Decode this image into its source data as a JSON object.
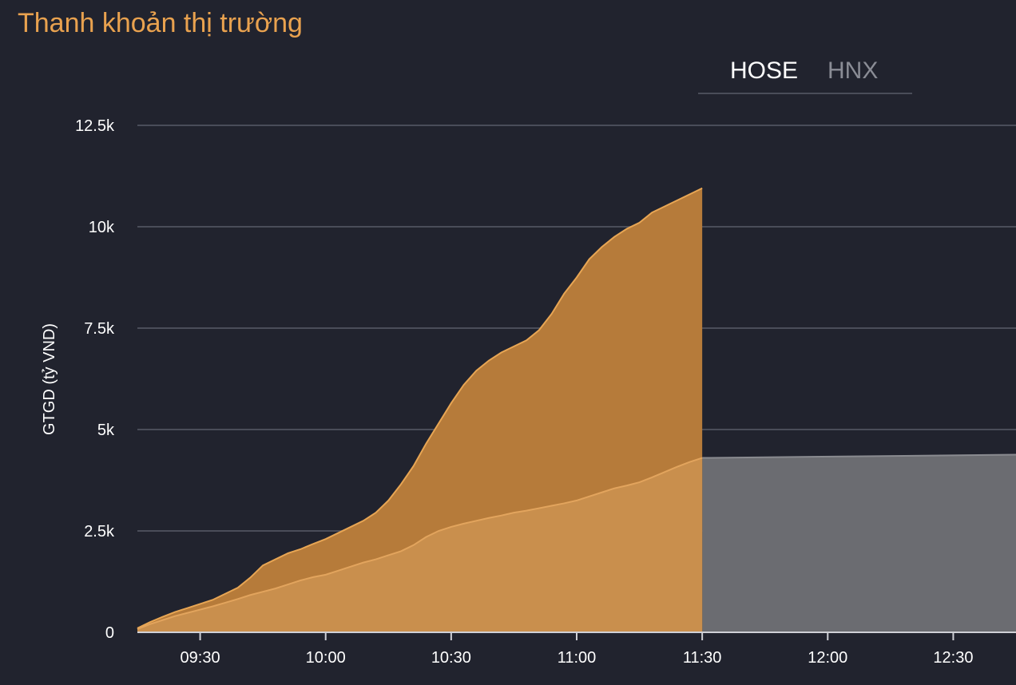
{
  "title": "Thanh khoản thị trường",
  "tabs": [
    {
      "label": "HOSE",
      "active": true
    },
    {
      "label": "HNX",
      "active": false
    }
  ],
  "colors": {
    "background": "#21232e",
    "title": "#e9a24f",
    "current_session_fill": "#b67b3a",
    "current_session_line": "#e8a654",
    "previous_session_fill": "#c98f4d",
    "previous_session_line": "#e2a45d",
    "projection_fill": "#6b6c71",
    "grid": "#4a4d59",
    "text": "#ffffff"
  },
  "chart_data": {
    "type": "area",
    "ylabel": "GTGD (tỷ VND)",
    "xlabel": "",
    "ylim": [
      0,
      12500
    ],
    "yticks": [
      0,
      2500,
      5000,
      7500,
      10000,
      12500
    ],
    "ytick_labels": [
      "0",
      "2.5k",
      "5k",
      "7.5k",
      "10k",
      "12.5k"
    ],
    "x_range": [
      "09:15",
      "12:45"
    ],
    "xticks": [
      "09:30",
      "10:00",
      "10:30",
      "11:00",
      "11:30",
      "12:00",
      "12:30"
    ],
    "grid": true,
    "series": [
      {
        "name": "",
        "x": [
          "09:15",
          "09:18",
          "09:21",
          "09:24",
          "09:27",
          "09:30",
          "09:33",
          "09:36",
          "09:39",
          "09:42",
          "09:45",
          "09:48",
          "09:51",
          "09:54",
          "09:57",
          "10:00",
          "10:03",
          "10:06",
          "10:09",
          "10:12",
          "10:15",
          "10:18",
          "10:21",
          "10:24",
          "10:27",
          "10:30",
          "10:33",
          "10:36",
          "10:39",
          "10:42",
          "10:45",
          "10:48",
          "10:51",
          "10:54",
          "10:57",
          "11:00",
          "11:03",
          "11:06",
          "11:09",
          "11:12",
          "11:15",
          "11:18",
          "11:21",
          "11:24",
          "11:27",
          "11:30"
        ],
        "y": [
          100,
          250,
          380,
          500,
          600,
          700,
          800,
          950,
          1100,
          1350,
          1650,
          1800,
          1950,
          2050,
          2180,
          2300,
          2450,
          2600,
          2750,
          2950,
          3250,
          3650,
          4100,
          4650,
          5150,
          5650,
          6100,
          6450,
          6700,
          6900,
          7050,
          7200,
          7450,
          7850,
          8350,
          8750,
          9200,
          9500,
          9750,
          9950,
          10100,
          10350,
          10500,
          10650,
          10800,
          10950
        ]
      },
      {
        "name": "",
        "x": [
          "09:15",
          "09:18",
          "09:21",
          "09:24",
          "09:27",
          "09:30",
          "09:33",
          "09:36",
          "09:39",
          "09:42",
          "09:45",
          "09:48",
          "09:51",
          "09:54",
          "09:57",
          "10:00",
          "10:03",
          "10:06",
          "10:09",
          "10:12",
          "10:15",
          "10:18",
          "10:21",
          "10:24",
          "10:27",
          "10:30",
          "10:33",
          "10:36",
          "10:39",
          "10:42",
          "10:45",
          "10:48",
          "10:51",
          "10:54",
          "10:57",
          "11:00",
          "11:03",
          "11:06",
          "11:09",
          "11:12",
          "11:15",
          "11:18",
          "11:21",
          "11:24",
          "11:27",
          "11:30"
        ],
        "y": [
          80,
          200,
          300,
          400,
          480,
          560,
          640,
          730,
          820,
          920,
          1000,
          1080,
          1180,
          1280,
          1360,
          1420,
          1520,
          1620,
          1720,
          1800,
          1900,
          2000,
          2150,
          2350,
          2500,
          2600,
          2680,
          2750,
          2820,
          2880,
          2950,
          3000,
          3060,
          3120,
          3180,
          3250,
          3350,
          3450,
          3550,
          3620,
          3700,
          3820,
          3950,
          4080,
          4200,
          4300
        ]
      },
      {
        "name": "",
        "x": [
          "11:30",
          "12:45"
        ],
        "y": [
          4300,
          4380
        ]
      }
    ]
  }
}
